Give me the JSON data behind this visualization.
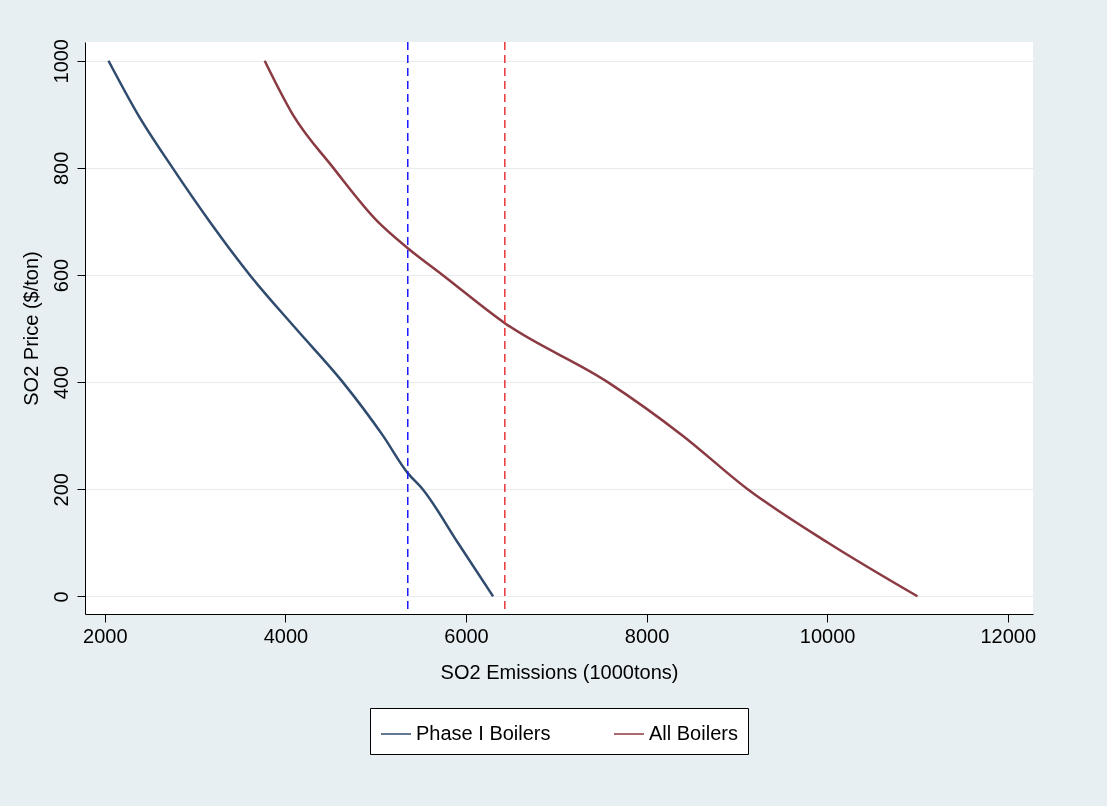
{
  "chart_data": {
    "type": "line",
    "xlabel": "SO2 Emissions (1000tons)",
    "ylabel": "SO2 Price ($/ton)",
    "xlim": [
      1780,
      12280
    ],
    "ylim": [
      -33,
      1035
    ],
    "xticks": [
      2000,
      4000,
      6000,
      8000,
      10000,
      12000
    ],
    "yticks": [
      0,
      200,
      400,
      600,
      800,
      1000
    ],
    "grid": "y",
    "legend": "bottom",
    "marker": "none",
    "line_style": "solid",
    "series": [
      {
        "name": "Phase I Boilers",
        "color": "#2f4b6e",
        "x": [
          2040,
          2365,
          2750,
          3160,
          3605,
          4115,
          4635,
          5080,
          5355,
          5520,
          5910,
          6300
        ],
        "values": [
          1000,
          900,
          800,
          700,
          600,
          500,
          400,
          300,
          230,
          200,
          100,
          0
        ]
      },
      {
        "name": "All Boilers",
        "color": "#8b3a42",
        "x": [
          3770,
          4080,
          4530,
          5020,
          5355,
          5740,
          6430,
          7570,
          8400,
          9120,
          10010,
          11000
        ],
        "values": [
          1000,
          900,
          800,
          700,
          650,
          600,
          510,
          400,
          300,
          200,
          100,
          0
        ]
      }
    ],
    "ref_lines": [
      {
        "axis": "x",
        "value": 5355,
        "color": "#1a1aff",
        "line_style": "dashed"
      },
      {
        "axis": "x",
        "value": 6430,
        "color": "#e8343a",
        "line_style": "dashed"
      }
    ]
  }
}
